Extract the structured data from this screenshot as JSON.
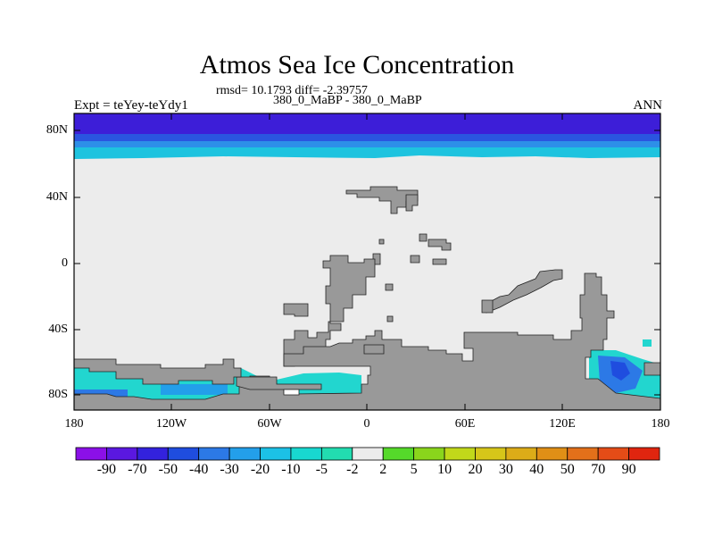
{
  "title": "Atmos Sea Ice Concentration",
  "stats": "rmsd= 10.1793 diff= -2.39757",
  "subtitle": "380_0_MaBP - 380_0_MaBP",
  "experiment": "Expt = teYey-teYdy1",
  "season": "ANN",
  "axes": {
    "y_ticks": [
      "80N",
      "40N",
      "0",
      "40S",
      "80S"
    ],
    "x_ticks": [
      "180",
      "120W",
      "60W",
      "0",
      "60E",
      "120E",
      "180"
    ]
  },
  "colorbar": {
    "labels": [
      "-90",
      "-70",
      "-50",
      "-40",
      "-30",
      "-20",
      "-10",
      "-5",
      "-2",
      "2",
      "5",
      "10",
      "20",
      "30",
      "40",
      "50",
      "70",
      "90"
    ],
    "colors": [
      "#8b10e8",
      "#5a18e0",
      "#3322dd",
      "#1f4ddf",
      "#2c79e6",
      "#239fea",
      "#1cc1e6",
      "#18d8d0",
      "#22dcb0",
      "#ececec",
      "#55d92a",
      "#8ad51c",
      "#c1d81a",
      "#d6c619",
      "#dcac18",
      "#e08f16",
      "#e3701a",
      "#e44c17",
      "#e0250f"
    ]
  },
  "colors": {
    "land": "#999999",
    "ocean_no_change": "#ececec",
    "polar_deep": "#3d1ed8",
    "polar_mid": "#2d6ee6",
    "polar_light": "#1ec3df",
    "southern_cyan": "#22d6cf"
  }
}
